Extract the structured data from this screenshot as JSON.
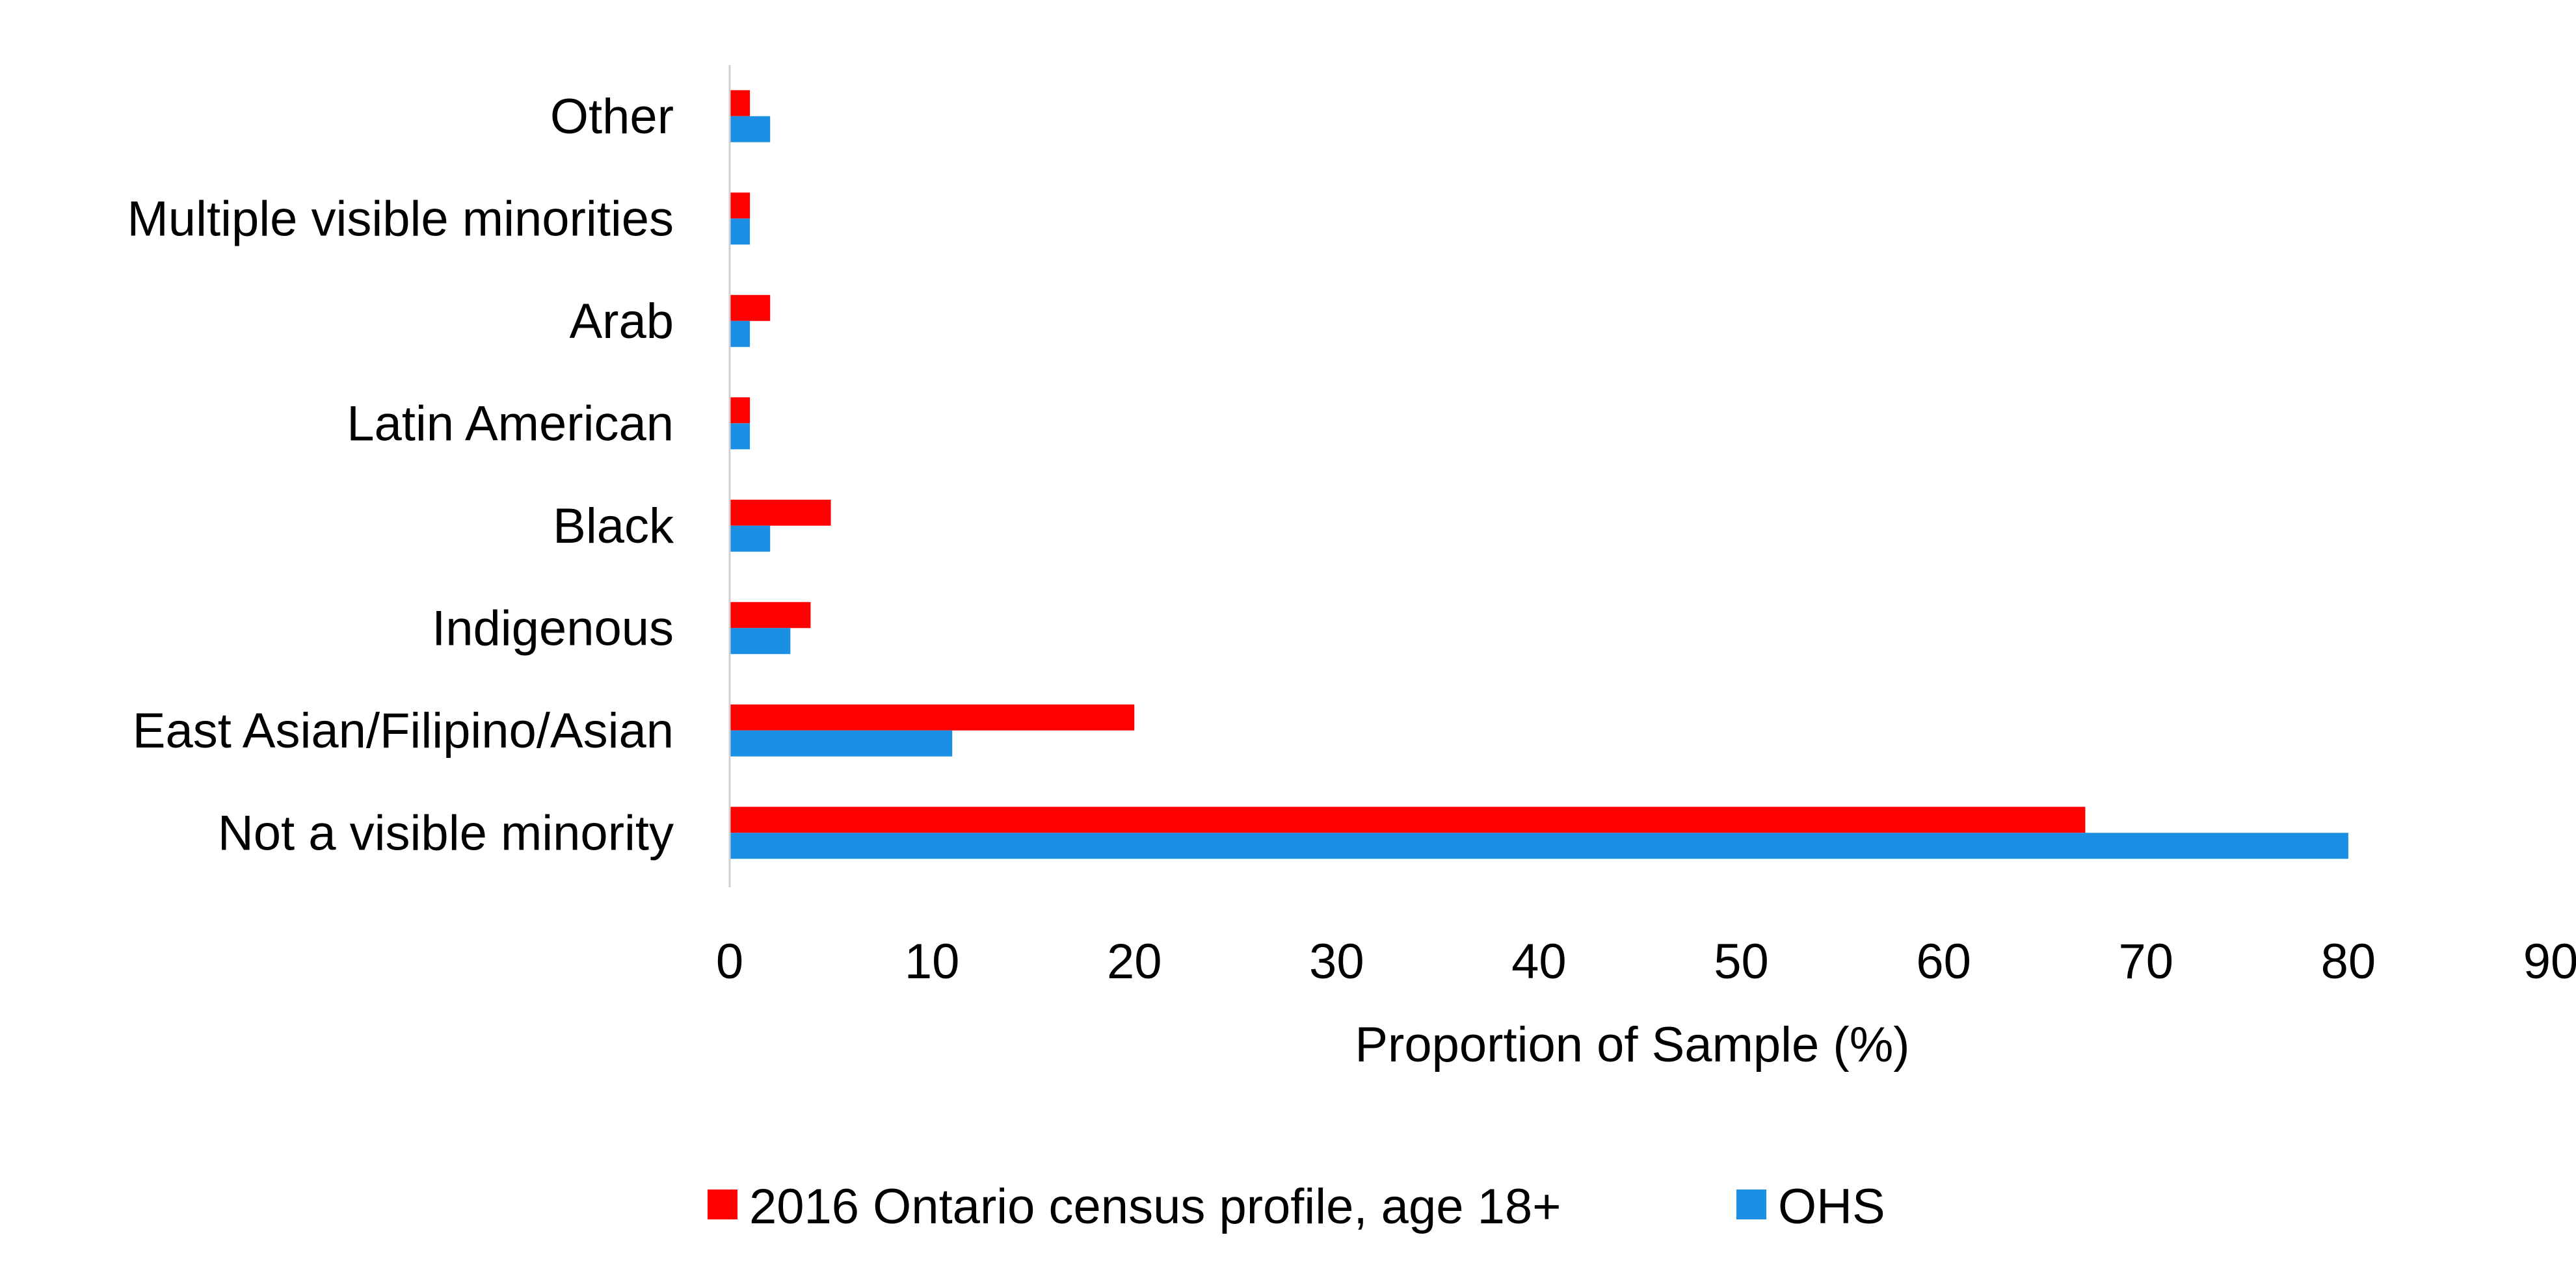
{
  "chart_data": {
    "type": "bar",
    "orientation": "horizontal",
    "title": "",
    "xlabel": "Proportion of Sample (%)",
    "ylabel": "",
    "xlim": [
      0,
      90
    ],
    "xticks": [
      0,
      10,
      20,
      30,
      40,
      50,
      60,
      70,
      80,
      90
    ],
    "grid": false,
    "legend_position": "bottom",
    "categories": [
      "Other",
      "Multiple visible minorities",
      "Arab",
      "Latin American",
      "Black",
      "Indigenous",
      "East Asian/Filipino/Asian",
      "Not a visible minority"
    ],
    "series": [
      {
        "name": "2016 Ontario census profile, age 18+",
        "color": "#ff0000",
        "values": [
          1,
          1,
          2,
          1,
          5,
          4,
          20,
          67
        ]
      },
      {
        "name": "OHS",
        "color": "#1a8fe3",
        "values": [
          2,
          1,
          1,
          1,
          2,
          3,
          11,
          80
        ]
      }
    ]
  }
}
